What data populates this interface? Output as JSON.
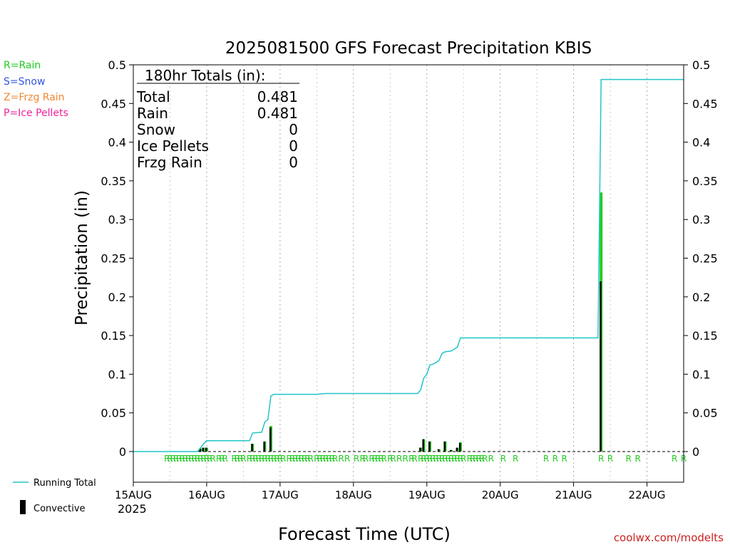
{
  "colors": {
    "rain": "#22cc22",
    "snow": "#3355dd",
    "frzg_rain": "#ee8833",
    "ice_pellets": "#ee2299",
    "running_total": "#22c5c9",
    "convective": "#000000",
    "credit": "#cc2222"
  },
  "legend_types": {
    "rain": "R=Rain",
    "snow": "S=Snow",
    "frzg_rain": "Z=Frzg Rain",
    "ice_pellets": "P=Ice Pellets"
  },
  "legend_series": {
    "running_total": "Running Total",
    "convective": "Convective"
  },
  "totals_box": {
    "header": "180hr Totals (in):",
    "rows": [
      {
        "label": "Total",
        "value": "0.481"
      },
      {
        "label": "Rain",
        "value": "0.481"
      },
      {
        "label": "Snow",
        "value": "0"
      },
      {
        "label": "Ice Pellets",
        "value": "0"
      },
      {
        "label": "Frzg Rain",
        "value": "0"
      }
    ]
  },
  "credit": "coolwx.com/modelts",
  "chart_data": {
    "type": "bar",
    "title": "2025081500 GFS Forecast Precipitation KBIS",
    "xlabel": "Forecast Time (UTC)",
    "ylabel": "Precipitation (in)",
    "ylim": [
      -0.04,
      0.5
    ],
    "y_ticks": [
      0,
      0.05,
      0.1,
      0.15,
      0.2,
      0.25,
      0.3,
      0.35,
      0.4,
      0.45,
      0.5
    ],
    "y_tick_labels": [
      "0",
      "0.05",
      "0.1",
      "0.15",
      "0.2",
      "0.25",
      "0.3",
      "0.35",
      "0.4",
      "0.45",
      "0.5"
    ],
    "xlim_hours": [
      0,
      180
    ],
    "x_ticks_hours": [
      0,
      24,
      48,
      72,
      96,
      120,
      144,
      168
    ],
    "x_tick_labels": [
      "15AUG",
      "16AUG",
      "17AUG",
      "18AUG",
      "19AUG",
      "20AUG",
      "21AUG",
      "22AUG"
    ],
    "x_year_label": "2025",
    "x_minor_grid_hours": [
      6,
      12,
      18,
      30,
      36,
      42,
      54,
      60,
      66,
      78,
      84,
      90,
      102,
      108,
      114,
      126,
      132,
      138,
      150,
      156,
      162,
      174,
      180
    ],
    "grid": true,
    "bars": [
      {
        "hour": 22,
        "total": 0.004,
        "convective": 0.004
      },
      {
        "hour": 23,
        "total": 0.005,
        "convective": 0.005
      },
      {
        "hour": 24,
        "total": 0.005,
        "convective": 0.005
      },
      {
        "hour": 39,
        "total": 0.01,
        "convective": 0.01
      },
      {
        "hour": 43,
        "total": 0.013,
        "convective": 0.013
      },
      {
        "hour": 45,
        "total": 0.033,
        "convective": 0.031
      },
      {
        "hour": 94,
        "total": 0.005,
        "convective": 0.005
      },
      {
        "hour": 95,
        "total": 0.016,
        "convective": 0.016
      },
      {
        "hour": 97,
        "total": 0.013,
        "convective": 0.013
      },
      {
        "hour": 100,
        "total": 0.003,
        "convective": 0.003
      },
      {
        "hour": 102,
        "total": 0.013,
        "convective": 0.013
      },
      {
        "hour": 104,
        "total": 0.002,
        "convective": 0.002
      },
      {
        "hour": 106,
        "total": 0.005,
        "convective": 0.005
      },
      {
        "hour": 107,
        "total": 0.012,
        "convective": 0.011
      },
      {
        "hour": 153,
        "total": 0.335,
        "convective": 0.22
      }
    ],
    "running_total": [
      [
        0,
        0
      ],
      [
        21,
        0
      ],
      [
        22,
        0.005
      ],
      [
        23,
        0.01
      ],
      [
        24,
        0.014
      ],
      [
        38,
        0.014
      ],
      [
        39,
        0.024
      ],
      [
        42,
        0.025
      ],
      [
        43,
        0.038
      ],
      [
        44,
        0.041
      ],
      [
        45,
        0.072
      ],
      [
        46,
        0.074
      ],
      [
        60,
        0.074
      ],
      [
        63,
        0.075
      ],
      [
        93,
        0.075
      ],
      [
        94,
        0.08
      ],
      [
        95,
        0.095
      ],
      [
        96,
        0.1
      ],
      [
        97,
        0.112
      ],
      [
        98,
        0.113
      ],
      [
        99,
        0.115
      ],
      [
        100,
        0.118
      ],
      [
        101,
        0.127
      ],
      [
        102,
        0.129
      ],
      [
        104,
        0.13
      ],
      [
        106,
        0.135
      ],
      [
        107,
        0.147
      ],
      [
        152,
        0.147
      ],
      [
        153,
        0.481
      ],
      [
        180,
        0.481
      ]
    ],
    "precip_type_markers": {
      "label": "R",
      "hours": [
        11,
        12,
        13,
        14,
        15,
        16,
        17,
        18,
        19,
        20,
        21,
        22,
        23,
        24,
        25,
        26,
        28,
        29,
        30,
        33,
        34,
        35,
        36,
        38,
        39,
        40,
        41,
        42,
        43,
        44,
        45,
        46,
        47,
        48,
        49,
        51,
        52,
        53,
        54,
        55,
        56,
        57,
        58,
        60,
        61,
        62,
        63,
        64,
        65,
        66,
        68,
        70,
        73,
        75,
        76,
        78,
        79,
        80,
        81,
        82,
        84,
        85,
        87,
        89,
        91,
        92,
        94,
        95,
        96,
        97,
        98,
        99,
        100,
        101,
        102,
        103,
        104,
        105,
        106,
        107,
        108,
        110,
        111,
        112,
        113,
        114,
        115,
        117,
        121,
        125,
        135,
        138,
        141,
        153,
        156,
        162,
        165,
        177,
        180
      ]
    }
  }
}
